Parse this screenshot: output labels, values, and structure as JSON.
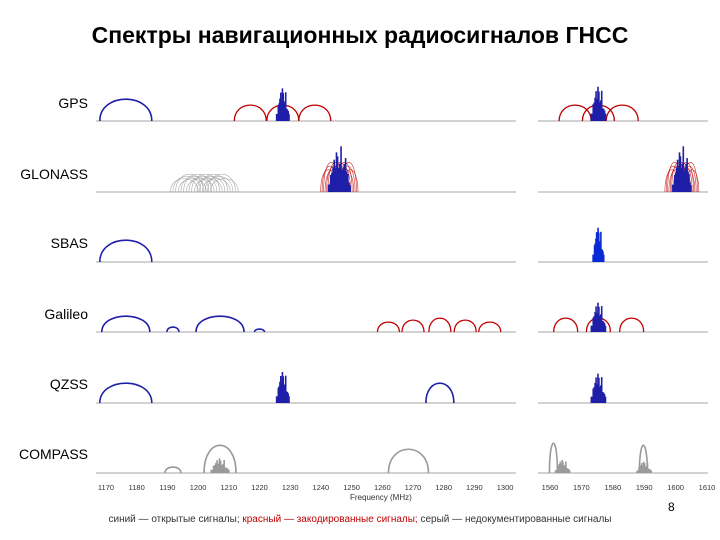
{
  "title": "Спектры навигационных радиосигналов ГНСС",
  "systems": [
    {
      "id": "gps",
      "label": "GPS"
    },
    {
      "id": "glonass",
      "label": "GLONASS"
    },
    {
      "id": "sbas",
      "label": "SBAS"
    },
    {
      "id": "galileo",
      "label": "Galileo"
    },
    {
      "id": "qzss",
      "label": "QZSS"
    },
    {
      "id": "compass",
      "label": "COMPASS"
    }
  ],
  "x_axis": {
    "label": "Frequency (MHz)",
    "ticks_left": [
      "1170",
      "1180",
      "1190",
      "1200",
      "1210",
      "1220",
      "1230",
      "1240",
      "1250",
      "1260",
      "1270",
      "1280",
      "1290",
      "1300"
    ],
    "ticks_right": [
      "1560",
      "1570",
      "1580",
      "1590",
      "1600",
      "1610"
    ]
  },
  "colors": {
    "open": "#1f1fa8",
    "open_bright": "#0a2ad6",
    "coded": "#c00000",
    "undocumented": "#9a9a9a",
    "baseline": "#888888"
  },
  "page_number": "8",
  "legend": {
    "open": "синий — открытые сигналы;",
    "coded": "красный — закодированные сигналы;",
    "undocumented": "серый — недокументированные сигналы"
  }
}
